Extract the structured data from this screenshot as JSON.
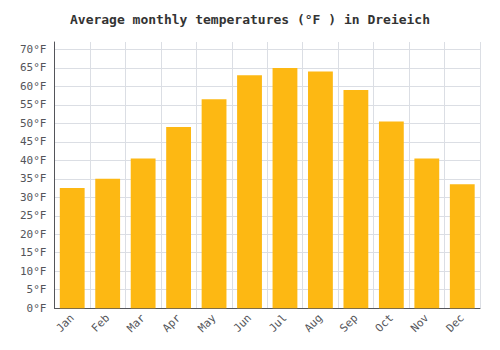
{
  "chart_data": {
    "type": "bar",
    "title": "Average monthly temperatures (°F ) in Dreieich",
    "categories": [
      "Jan",
      "Feb",
      "Mar",
      "Apr",
      "May",
      "Jun",
      "Jul",
      "Aug",
      "Sep",
      "Oct",
      "Nov",
      "Dec"
    ],
    "values": [
      32.5,
      35.0,
      40.5,
      49.0,
      56.5,
      63.0,
      65.0,
      64.0,
      59.0,
      50.5,
      40.5,
      33.5
    ],
    "color": "#FDB813",
    "ylim": [
      0,
      72
    ],
    "yticks": [
      {
        "value": 0,
        "label": "0°F"
      },
      {
        "value": 5,
        "label": "5°F"
      },
      {
        "value": 10,
        "label": "10°F"
      },
      {
        "value": 15,
        "label": "15°F"
      },
      {
        "value": 20,
        "label": "20°F"
      },
      {
        "value": 25,
        "label": "25°F"
      },
      {
        "value": 30,
        "label": "30°F"
      },
      {
        "value": 35,
        "label": "35°F"
      },
      {
        "value": 40,
        "label": "40°F"
      },
      {
        "value": 45,
        "label": "45°F"
      },
      {
        "value": 50,
        "label": "50°F"
      },
      {
        "value": 55,
        "label": "55°F"
      },
      {
        "value": 60,
        "label": "60°F"
      },
      {
        "value": 65,
        "label": "65°F"
      },
      {
        "value": 70,
        "label": "70°F"
      }
    ],
    "grid": true
  }
}
